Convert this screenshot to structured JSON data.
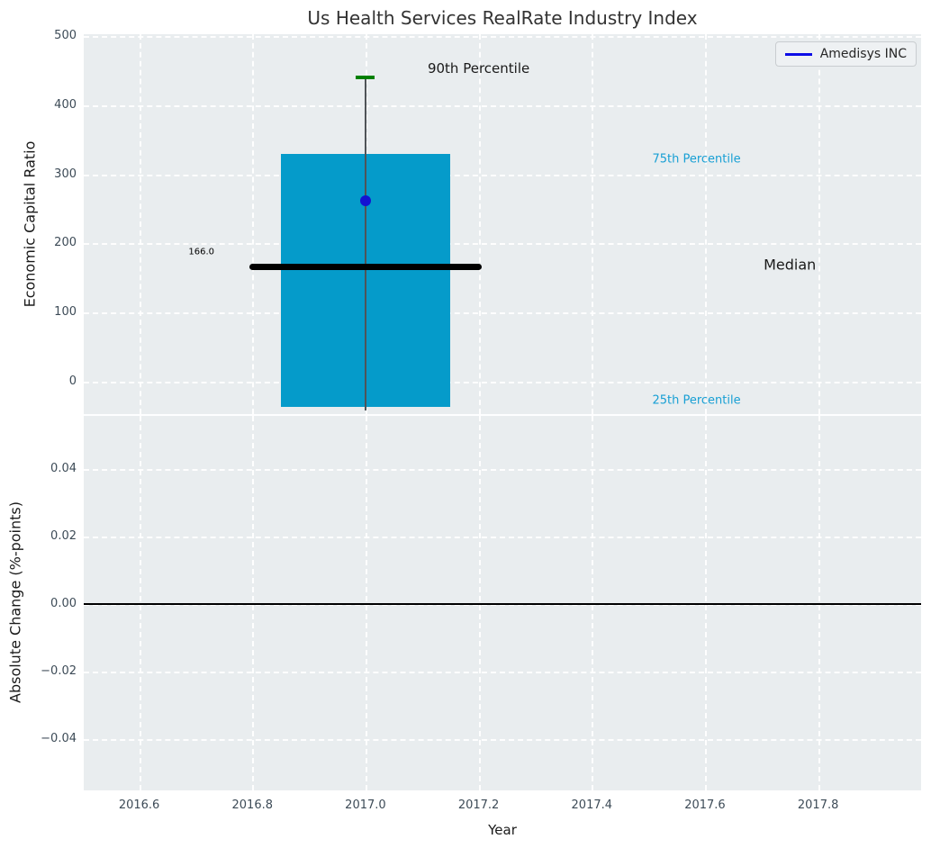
{
  "chart_data": [
    {
      "type": "boxplot",
      "title": "Us Health Services RealRate Industry Index",
      "xlabel": "Year",
      "ylabel": "Economic Capital Ratio",
      "xlim": [
        2016.502,
        2017.982
      ],
      "ylim": [
        -47,
        503
      ],
      "xticks": [
        2016.6,
        2016.8,
        2017.0,
        2017.2,
        2017.4,
        2017.6,
        2017.8
      ],
      "xtick_labels": [
        "2016.6",
        "2016.8",
        "2017.0",
        "2017.2",
        "2017.4",
        "2017.6",
        "2017.8"
      ],
      "yticks": [
        500,
        400,
        300,
        200,
        100,
        0
      ],
      "ytick_labels": [
        "500",
        "400",
        "300",
        "200",
        "100",
        "0"
      ],
      "grid": "white dashed on light gray",
      "legend": {
        "position": "upper right",
        "entries": [
          "Amedisys INC"
        ]
      },
      "box": {
        "x": 2017.0,
        "bar_width_years": 0.3,
        "p90": 440,
        "p75": 330,
        "median": 166,
        "p25": -37,
        "whisker_low": -42,
        "median_label": "166.0",
        "median_line_span": [
          2016.795,
          2017.205
        ],
        "company_point": {
          "name": "Amedisys INC",
          "x": 2017.0,
          "y": 262
        }
      },
      "annotations": [
        {
          "id": "p90",
          "text": "90th Percentile",
          "x": 2017.2,
          "y": 453,
          "size": 15,
          "color": "#1a1a1a"
        },
        {
          "id": "p75",
          "text": "75th Percentile",
          "x": 2017.585,
          "y": 322,
          "size": 13,
          "color": "#179fd4"
        },
        {
          "id": "median",
          "text": "Median",
          "x": 2017.75,
          "y": 170,
          "size": 16,
          "color": "#1a1a1a"
        },
        {
          "id": "p25",
          "text": "25th Percentile",
          "x": 2017.585,
          "y": -28,
          "size": 13,
          "color": "#179fd4"
        },
        {
          "id": "median-value",
          "text": "166.0",
          "x": 2016.71,
          "y": 187,
          "size": 10,
          "color": "#000000"
        }
      ]
    },
    {
      "type": "line",
      "xlabel": "Year",
      "ylabel": "Absolute Change (%-points)",
      "xlim": [
        2016.502,
        2017.982
      ],
      "ylim": [
        -0.0551,
        0.0556
      ],
      "yticks": [
        0.04,
        0.02,
        0.0,
        -0.02,
        -0.04
      ],
      "ytick_labels": [
        "0.04",
        "0.02",
        "0.00",
        "−0.02",
        "−0.04"
      ],
      "zero_line": 0.0,
      "series": []
    }
  ],
  "colors": {
    "bar": "#059bca",
    "dot": "#1414d2",
    "cap": "#008000",
    "whisker": "#4f5458",
    "median_line": "#000000",
    "zero_line": "#000000",
    "legend_line": "#0d0de6",
    "axes_bg": "#e9edef",
    "grid": "#ffffff",
    "tick_text": "#3d4b57"
  }
}
